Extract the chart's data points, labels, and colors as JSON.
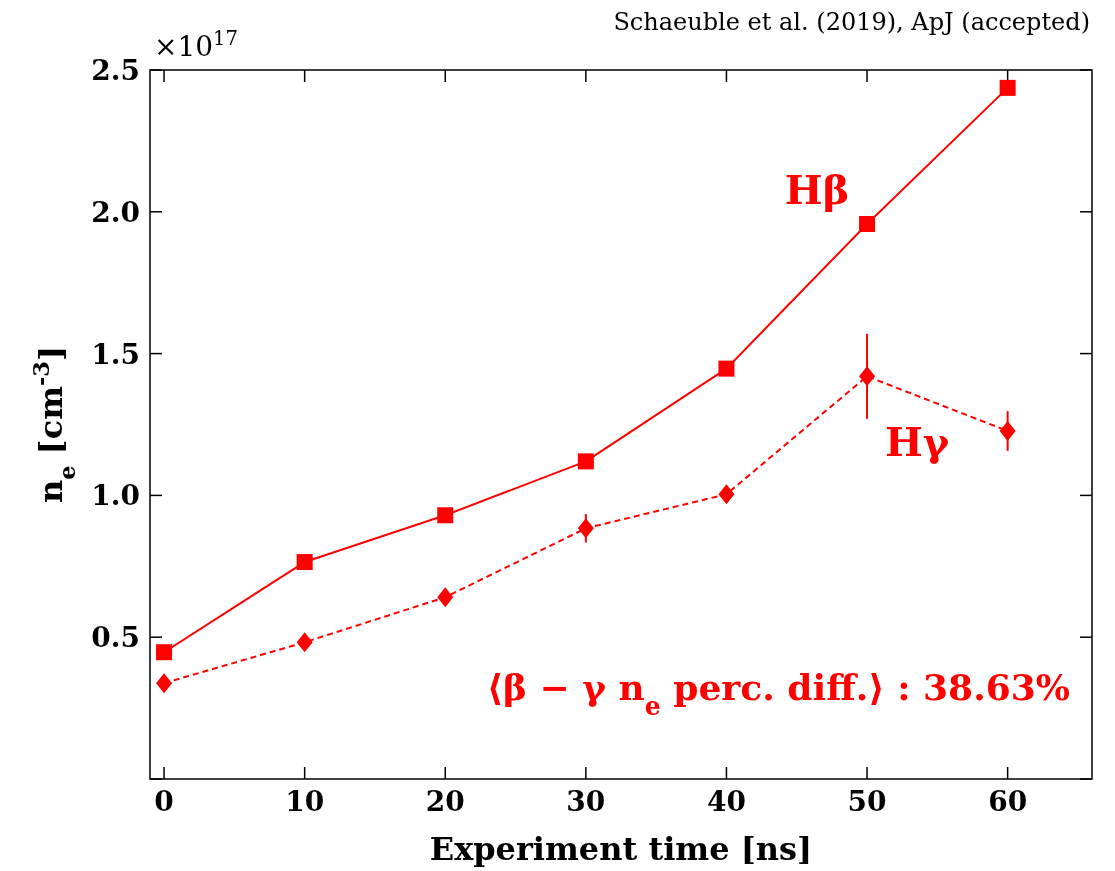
{
  "chart_data": {
    "type": "line",
    "xlabel": "Experiment time [ns]",
    "ylabel": "n$_{e}$ [cm$^{-3}$]",
    "x": [
      0,
      10,
      20,
      30,
      40,
      50,
      60
    ],
    "series": [
      {
        "name": "Hβ",
        "color": "#ff0000",
        "values": [
          0.447,
          0.765,
          0.93,
          1.12,
          1.447,
          1.957,
          2.437
        ],
        "marker": "square",
        "line_style": "solid"
      },
      {
        "name": "Hγ",
        "color": "#ff0000",
        "values": [
          0.338,
          0.482,
          0.641,
          0.884,
          1.004,
          1.42,
          1.227
        ],
        "errors": [
          null,
          null,
          null,
          0.05,
          0.03,
          0.15,
          0.07
        ],
        "marker": "diamond",
        "line_style": "dashed"
      }
    ],
    "xlim": [
      -1,
      66
    ],
    "ylim": [
      0,
      2.5
    ],
    "xticks": [
      0,
      10,
      20,
      30,
      40,
      50,
      60
    ],
    "yticks": [
      {
        "value": 0,
        "label": null
      },
      0.5,
      {
        "value": 1,
        "label": "1.0"
      },
      1.5,
      {
        "value": 2,
        "label": "2.0"
      },
      2.5
    ],
    "grid": false,
    "annotations": [
      "×10$^{17}$",
      "Schaeuble et al. (2019), ApJ (accepted)",
      "⟨β − γ n$_{e}$ perc. diff.⟩ : 38.63%"
    ]
  }
}
